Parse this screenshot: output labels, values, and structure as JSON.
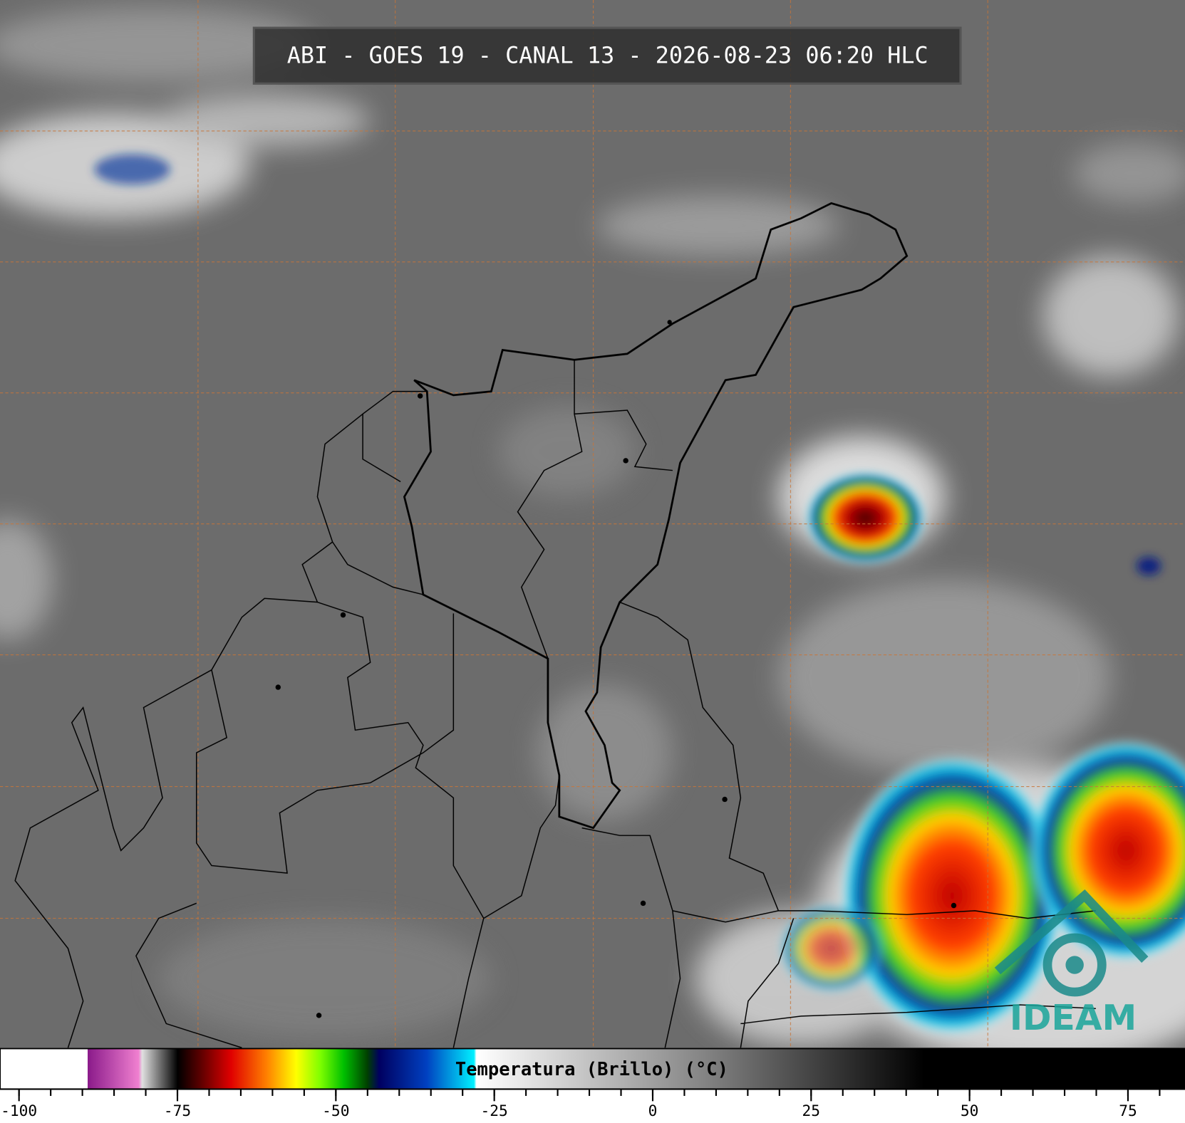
{
  "title": "ABI - GOES 19 - CANAL 13 - 2026-08-23 06:20 HLC",
  "colorbar": {
    "label": "Temperatura (Brillo) (°C)",
    "lim": [
      -103,
      84
    ],
    "ticks": [
      -100,
      -75,
      -50,
      -25,
      0,
      25,
      50,
      75
    ],
    "minor_ticks": [
      -100,
      -95,
      -90,
      -85,
      -80,
      -75,
      -70,
      -65,
      -60,
      -55,
      -50,
      -45,
      -40,
      -35,
      -30,
      -25,
      -20,
      -15,
      -10,
      -5,
      0,
      5,
      10,
      15,
      20,
      25,
      30,
      35,
      40,
      45,
      50,
      55,
      60,
      65,
      70,
      75,
      80
    ]
  },
  "logo": "IDEAM"
}
